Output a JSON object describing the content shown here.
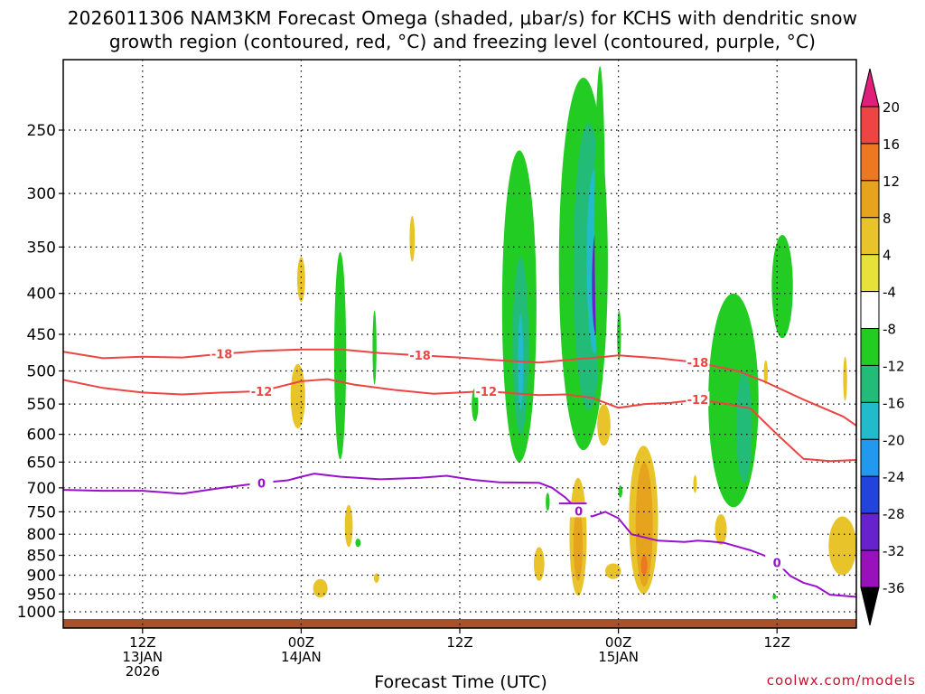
{
  "header": {
    "title_line1": "2026011306 NAM3KM Forecast Omega (shaded, μbar/s) for KCHS with dendritic snow",
    "title_line2": "growth region (contoured, red, °C) and freezing level (contoured, purple, °C)"
  },
  "footer": {
    "xlabel": "Forecast Time (UTC)",
    "credit": "coolwx.com/models"
  },
  "chart_data": {
    "type": "heatmap",
    "title": "2026011306 NAM3KM Forecast Omega (shaded, μbar/s) for KCHS with dendritic snow growth region (contoured, red, °C) and freezing level (contoured, purple, °C)",
    "xlabel": "Forecast Time (UTC)",
    "ylabel": "",
    "x_unit": "hours since 2026-01-13 06Z",
    "xlim": [
      0,
      60
    ],
    "ylim": [
      1000,
      200
    ],
    "yscale": "log-pressure",
    "x_ticks": [
      {
        "x": 6,
        "label": [
          "12Z",
          "13JAN",
          "2026"
        ]
      },
      {
        "x": 18,
        "label": [
          "00Z",
          "14JAN"
        ]
      },
      {
        "x": 30,
        "label": [
          "12Z"
        ]
      },
      {
        "x": 42,
        "label": [
          "00Z",
          "15JAN"
        ]
      },
      {
        "x": 54,
        "label": [
          "12Z"
        ]
      }
    ],
    "y_ticks": [
      250,
      300,
      350,
      400,
      450,
      500,
      550,
      600,
      650,
      700,
      750,
      800,
      850,
      900,
      950,
      1000
    ],
    "grid": true,
    "colorbar": {
      "unit": "μbar/s",
      "labels": [
        "20",
        "16",
        "12",
        "8",
        "4",
        "-4",
        "-8",
        "-12",
        "-16",
        "-20",
        "-24",
        "-28",
        "-32",
        "-36"
      ],
      "colors": [
        "#e01f7a",
        "#ee4444",
        "#ee7722",
        "#e6a31e",
        "#e8c42a",
        "#e6e23a",
        "#ffffff",
        "#22cc22",
        "#22bb77",
        "#22bbcc",
        "#2299ee",
        "#2244dd",
        "#6622cc",
        "#9911bb",
        "#aaaaaa",
        "#000000"
      ]
    },
    "contours": [
      {
        "label": "-18",
        "color": "#ee4444",
        "points": [
          [
            0,
            473
          ],
          [
            3,
            482
          ],
          [
            6,
            480
          ],
          [
            9,
            481
          ],
          [
            12,
            476
          ],
          [
            15,
            472
          ],
          [
            18,
            470
          ],
          [
            21,
            470
          ],
          [
            24,
            475
          ],
          [
            27,
            478
          ],
          [
            30,
            481
          ],
          [
            33,
            485
          ],
          [
            36,
            488
          ],
          [
            39,
            483
          ],
          [
            41,
            480
          ],
          [
            42,
            478
          ],
          [
            45,
            482
          ],
          [
            48,
            488
          ],
          [
            51,
            500
          ],
          [
            53,
            515
          ],
          [
            56,
            543
          ],
          [
            59,
            570
          ],
          [
            60,
            585
          ]
        ]
      },
      {
        "label": "-12",
        "color": "#ee4444",
        "points": [
          [
            0,
            513
          ],
          [
            3,
            525
          ],
          [
            6,
            532
          ],
          [
            9,
            535
          ],
          [
            12,
            532
          ],
          [
            15,
            530
          ],
          [
            18,
            515
          ],
          [
            20,
            512
          ],
          [
            22,
            520
          ],
          [
            25,
            528
          ],
          [
            28,
            534
          ],
          [
            30,
            532
          ],
          [
            32,
            530
          ],
          [
            34,
            533
          ],
          [
            36,
            536
          ],
          [
            38,
            535
          ],
          [
            40,
            540
          ],
          [
            42,
            556
          ],
          [
            44,
            550
          ],
          [
            46,
            548
          ],
          [
            48,
            543
          ],
          [
            50,
            549
          ],
          [
            52,
            557
          ],
          [
            54,
            600
          ],
          [
            56,
            644
          ],
          [
            58,
            648
          ],
          [
            60,
            646
          ]
        ]
      },
      {
        "label": "0",
        "color": "#9911cc",
        "points": [
          [
            0,
            704
          ],
          [
            3,
            706
          ],
          [
            6,
            706
          ],
          [
            9,
            712
          ],
          [
            12,
            700
          ],
          [
            15,
            690
          ],
          [
            17,
            685
          ],
          [
            18,
            678
          ],
          [
            19,
            672
          ],
          [
            21,
            678
          ],
          [
            24,
            683
          ],
          [
            27,
            680
          ],
          [
            29,
            676
          ],
          [
            31,
            684
          ],
          [
            33,
            689
          ],
          [
            36,
            690
          ],
          [
            37,
            700
          ],
          [
            38,
            720
          ],
          [
            39,
            748
          ],
          [
            40,
            760
          ],
          [
            41,
            750
          ],
          [
            42,
            764
          ],
          [
            43,
            800
          ],
          [
            45,
            815
          ],
          [
            47,
            818
          ],
          [
            48,
            815
          ],
          [
            49,
            817
          ],
          [
            50,
            820
          ],
          [
            52,
            838
          ],
          [
            53,
            850
          ],
          [
            54,
            868
          ],
          [
            55,
            902
          ],
          [
            56,
            920
          ],
          [
            57,
            930
          ],
          [
            58,
            952
          ],
          [
            60,
            958
          ]
        ]
      },
      {
        "label": "",
        "color": "#9911cc",
        "points": [
          [
            37.5,
            732
          ],
          [
            39.6,
            732
          ]
        ]
      }
    ],
    "omega_regions": [
      {
        "value": -8,
        "t0": 20.5,
        "t1": 21.4,
        "p_top": 355,
        "p_bot": 645
      },
      {
        "value": -8,
        "t0": 23.4,
        "t1": 23.7,
        "p_top": 420,
        "p_bot": 520
      },
      {
        "value": -8,
        "t0": 30.9,
        "t1": 31.4,
        "p_top": 525,
        "p_bot": 578
      },
      {
        "value": -8,
        "t0": 33.2,
        "t1": 35.8,
        "p_top": 265,
        "p_bot": 650
      },
      {
        "value": -12,
        "t0": 34.0,
        "t1": 35.2,
        "p_top": 360,
        "p_bot": 600
      },
      {
        "value": -16,
        "t0": 34.4,
        "t1": 34.8,
        "p_top": 425,
        "p_bot": 560
      },
      {
        "value": -8,
        "t0": 37.5,
        "t1": 41.2,
        "p_top": 215,
        "p_bot": 628
      },
      {
        "value": -12,
        "t0": 38.6,
        "t1": 40.9,
        "p_top": 245,
        "p_bot": 560
      },
      {
        "value": -16,
        "t0": 39.6,
        "t1": 40.8,
        "p_top": 280,
        "p_bot": 475
      },
      {
        "value": -24,
        "t0": 40.0,
        "t1": 40.6,
        "p_top": 335,
        "p_bot": 450
      },
      {
        "value": -8,
        "t0": 40.2,
        "t1": 41.0,
        "p_top": 208,
        "p_bot": 520
      },
      {
        "value": -8,
        "t0": 41.9,
        "t1": 42.2,
        "p_top": 420,
        "p_bot": 485
      },
      {
        "value": -8,
        "t0": 48.8,
        "t1": 52.6,
        "p_top": 400,
        "p_bot": 740
      },
      {
        "value": -12,
        "t0": 50.9,
        "t1": 52.1,
        "p_top": 500,
        "p_bot": 690
      },
      {
        "value": -8,
        "t0": 53.6,
        "t1": 55.2,
        "p_top": 338,
        "p_bot": 455
      },
      {
        "value": -8,
        "t0": 36.5,
        "t1": 36.8,
        "p_top": 710,
        "p_bot": 748
      },
      {
        "value": -8,
        "t0": 42.0,
        "t1": 42.3,
        "p_top": 695,
        "p_bot": 720
      },
      {
        "value": -8,
        "t0": 22.1,
        "t1": 22.5,
        "p_top": 810,
        "p_bot": 830
      },
      {
        "value": -8,
        "t0": 53.7,
        "t1": 53.9,
        "p_top": 950,
        "p_bot": 965
      },
      {
        "value": 4,
        "t0": 17.7,
        "t1": 18.3,
        "p_top": 360,
        "p_bot": 410
      },
      {
        "value": 4,
        "t0": 26.2,
        "t1": 26.6,
        "p_top": 320,
        "p_bot": 365
      },
      {
        "value": 4,
        "t0": 17.2,
        "t1": 18.3,
        "p_top": 490,
        "p_bot": 590
      },
      {
        "value": 4,
        "t0": 38.3,
        "t1": 39.6,
        "p_top": 680,
        "p_bot": 955
      },
      {
        "value": 8,
        "t0": 38.6,
        "t1": 39.3,
        "p_top": 740,
        "p_bot": 915
      },
      {
        "value": 4,
        "t0": 40.4,
        "t1": 41.4,
        "p_top": 550,
        "p_bot": 620
      },
      {
        "value": 4,
        "t0": 42.8,
        "t1": 45.0,
        "p_top": 620,
        "p_bot": 950
      },
      {
        "value": 8,
        "t0": 43.3,
        "t1": 44.6,
        "p_top": 650,
        "p_bot": 930
      },
      {
        "value": 12,
        "t0": 43.7,
        "t1": 44.2,
        "p_top": 850,
        "p_bot": 900
      },
      {
        "value": 4,
        "t0": 21.3,
        "t1": 21.9,
        "p_top": 735,
        "p_bot": 830
      },
      {
        "value": 4,
        "t0": 35.6,
        "t1": 36.4,
        "p_top": 830,
        "p_bot": 915
      },
      {
        "value": 4,
        "t0": 41.0,
        "t1": 42.2,
        "p_top": 870,
        "p_bot": 910
      },
      {
        "value": 4,
        "t0": 18.9,
        "t1": 20.0,
        "p_top": 910,
        "p_bot": 960
      },
      {
        "value": 4,
        "t0": 23.5,
        "t1": 23.9,
        "p_top": 895,
        "p_bot": 920
      },
      {
        "value": 4,
        "t0": 47.7,
        "t1": 47.9,
        "p_top": 675,
        "p_bot": 710
      },
      {
        "value": 4,
        "t0": 49.3,
        "t1": 50.2,
        "p_top": 755,
        "p_bot": 825
      },
      {
        "value": 4,
        "t0": 53.0,
        "t1": 53.3,
        "p_top": 485,
        "p_bot": 520
      },
      {
        "value": 4,
        "t0": 59.0,
        "t1": 59.3,
        "p_top": 480,
        "p_bot": 545
      },
      {
        "value": 4,
        "t0": 57.9,
        "t1": 60.0,
        "p_top": 760,
        "p_bot": 900
      }
    ],
    "terrain": {
      "color": "#a6522a",
      "p_top": 1000
    }
  }
}
